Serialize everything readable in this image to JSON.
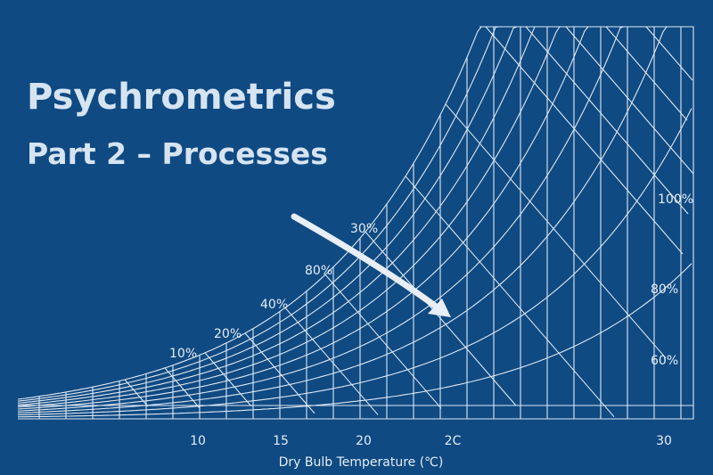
{
  "title": "Psychrometrics",
  "subtitle": "Part 2 – Processes",
  "axis_label": "Dry Bulb Temperature (℃)",
  "x_labels": [
    "10",
    "15",
    "20",
    "2C",
    "30"
  ],
  "curve_labels": [
    "100%",
    "80%",
    "60%",
    "30%",
    "80%",
    "40%",
    "20%",
    "10%"
  ]
}
